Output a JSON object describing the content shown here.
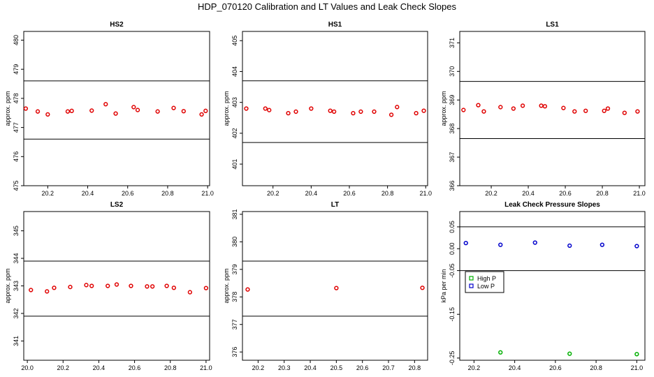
{
  "title": "HDP_070120  Calibration and LT Values and Leak Check Slopes",
  "legend": {
    "high": "High P",
    "low": "Low P"
  },
  "chart_data": [
    {
      "type": "scatter",
      "title": "HS2",
      "ylabel": "approx. ppm",
      "xlim": [
        20.08,
        21.01
      ],
      "ylim": [
        475.0,
        480.3
      ],
      "xticks": [
        20.2,
        20.4,
        20.6,
        20.8,
        21.0
      ],
      "xtick_labels": [
        "20.2",
        "20.4",
        "20.6",
        "20.8",
        "21.0"
      ],
      "yticks": [
        475,
        476,
        477,
        478,
        479,
        480
      ],
      "ytick_labels": [
        "475",
        "476",
        "477",
        "478",
        "479",
        "480"
      ],
      "hlines": [
        478.6,
        476.6
      ],
      "series": [
        {
          "name": "values",
          "color": "#e00000",
          "x": [
            20.09,
            20.15,
            20.2,
            20.3,
            20.32,
            20.42,
            20.49,
            20.54,
            20.63,
            20.65,
            20.75,
            20.83,
            20.88,
            20.97,
            20.99
          ],
          "y": [
            477.65,
            477.55,
            477.45,
            477.55,
            477.57,
            477.58,
            477.8,
            477.48,
            477.7,
            477.6,
            477.55,
            477.67,
            477.56,
            477.45,
            477.57
          ]
        }
      ]
    },
    {
      "type": "scatter",
      "title": "HS1",
      "ylabel": "approx. ppm",
      "xlim": [
        20.04,
        21.01
      ],
      "ylim": [
        400.3,
        405.3
      ],
      "xticks": [
        20.2,
        20.4,
        20.6,
        20.8,
        21.0
      ],
      "xtick_labels": [
        "20.2",
        "20.4",
        "20.6",
        "20.8",
        "21.0"
      ],
      "yticks": [
        401,
        402,
        403,
        404,
        405
      ],
      "ytick_labels": [
        "401",
        "402",
        "403",
        "404",
        "405"
      ],
      "hlines": [
        403.7,
        401.7
      ],
      "series": [
        {
          "name": "values",
          "color": "#e00000",
          "x": [
            20.06,
            20.16,
            20.18,
            20.28,
            20.32,
            20.4,
            20.5,
            20.52,
            20.62,
            20.66,
            20.73,
            20.82,
            20.85,
            20.95,
            20.99
          ],
          "y": [
            402.8,
            402.8,
            402.75,
            402.65,
            402.7,
            402.8,
            402.73,
            402.7,
            402.65,
            402.7,
            402.7,
            402.6,
            402.85,
            402.65,
            402.73
          ]
        }
      ]
    },
    {
      "type": "scatter",
      "title": "LS1",
      "ylabel": "approx. ppm",
      "xlim": [
        20.03,
        21.03
      ],
      "ylim": [
        366.0,
        371.4
      ],
      "xticks": [
        20.2,
        20.4,
        20.6,
        20.8,
        21.0
      ],
      "xtick_labels": [
        "20.2",
        "20.4",
        "20.6",
        "20.8",
        "21.0"
      ],
      "yticks": [
        366,
        367,
        368,
        369,
        370,
        371
      ],
      "ytick_labels": [
        "366",
        "367",
        "368",
        "369",
        "370",
        "371"
      ],
      "hlines": [
        369.65,
        367.65
      ],
      "series": [
        {
          "name": "values",
          "color": "#e00000",
          "x": [
            20.05,
            20.13,
            20.16,
            20.25,
            20.32,
            20.37,
            20.47,
            20.49,
            20.59,
            20.65,
            20.71,
            20.81,
            20.83,
            20.92,
            20.99
          ],
          "y": [
            368.65,
            368.82,
            368.6,
            368.75,
            368.7,
            368.8,
            368.8,
            368.78,
            368.72,
            368.6,
            368.62,
            368.62,
            368.7,
            368.55,
            368.6
          ]
        }
      ]
    },
    {
      "type": "scatter",
      "title": "LS2",
      "ylabel": "approx. ppm",
      "xlim": [
        19.98,
        21.02
      ],
      "ylim": [
        340.3,
        345.7
      ],
      "xticks": [
        20.0,
        20.2,
        20.4,
        20.6,
        20.8,
        21.0
      ],
      "xtick_labels": [
        "20.0",
        "20.2",
        "20.4",
        "20.6",
        "20.8",
        "21.0"
      ],
      "yticks": [
        341,
        342,
        343,
        344,
        345
      ],
      "ytick_labels": [
        "341",
        "342",
        "343",
        "344",
        "345"
      ],
      "hlines": [
        343.9,
        341.9
      ],
      "series": [
        {
          "name": "values",
          "color": "#e00000",
          "x": [
            20.02,
            20.11,
            20.15,
            20.24,
            20.33,
            20.36,
            20.45,
            20.5,
            20.58,
            20.67,
            20.7,
            20.78,
            20.82,
            20.91,
            21.0
          ],
          "y": [
            342.85,
            342.8,
            342.93,
            342.96,
            343.03,
            343.0,
            343.0,
            343.05,
            343.0,
            342.98,
            342.98,
            343.0,
            342.93,
            342.77,
            342.92
          ]
        }
      ]
    },
    {
      "type": "scatter",
      "title": "LT",
      "ylabel": "approx. ppm",
      "xlim": [
        20.14,
        20.85
      ],
      "ylim": [
        375.7,
        381.1
      ],
      "xticks": [
        20.2,
        20.3,
        20.4,
        20.5,
        20.6,
        20.7,
        20.8
      ],
      "xtick_labels": [
        "20.2",
        "20.3",
        "20.4",
        "20.5",
        "20.6",
        "20.7",
        "20.8"
      ],
      "yticks": [
        376,
        377,
        378,
        379,
        380,
        381
      ],
      "ytick_labels": [
        "376",
        "377",
        "378",
        "379",
        "380",
        "381"
      ],
      "hlines": [
        379.3,
        377.3
      ],
      "series": [
        {
          "name": "values",
          "color": "#e00000",
          "x": [
            20.16,
            20.5,
            20.83
          ],
          "y": [
            378.27,
            378.32,
            378.33
          ]
        }
      ]
    },
    {
      "type": "scatter",
      "title": "Leak Check Pressure Slopes",
      "ylabel": "kPa per min",
      "xlim": [
        20.13,
        21.04
      ],
      "ylim": [
        -0.255,
        0.085
      ],
      "xticks": [
        20.2,
        20.4,
        20.6,
        20.8,
        21.0
      ],
      "xtick_labels": [
        "20.2",
        "20.4",
        "20.6",
        "20.8",
        "21.0"
      ],
      "yticks": [
        0.05,
        0.0,
        -0.05,
        -0.15,
        -0.25
      ],
      "ytick_labels": [
        "0.05",
        "0.00",
        "-0.05",
        "-0.15",
        "-0.25"
      ],
      "hlines": [
        0.05,
        -0.05
      ],
      "legend": "left",
      "series": [
        {
          "name": "High P",
          "color": "#00b000",
          "x": [
            20.33,
            20.67,
            21.0
          ],
          "y": [
            -0.237,
            -0.24,
            -0.241
          ]
        },
        {
          "name": "Low P",
          "color": "#0000cc",
          "x": [
            20.16,
            20.33,
            20.5,
            20.67,
            20.83,
            21.0
          ],
          "y": [
            0.013,
            0.009,
            0.014,
            0.007,
            0.009,
            0.006
          ]
        }
      ]
    }
  ]
}
